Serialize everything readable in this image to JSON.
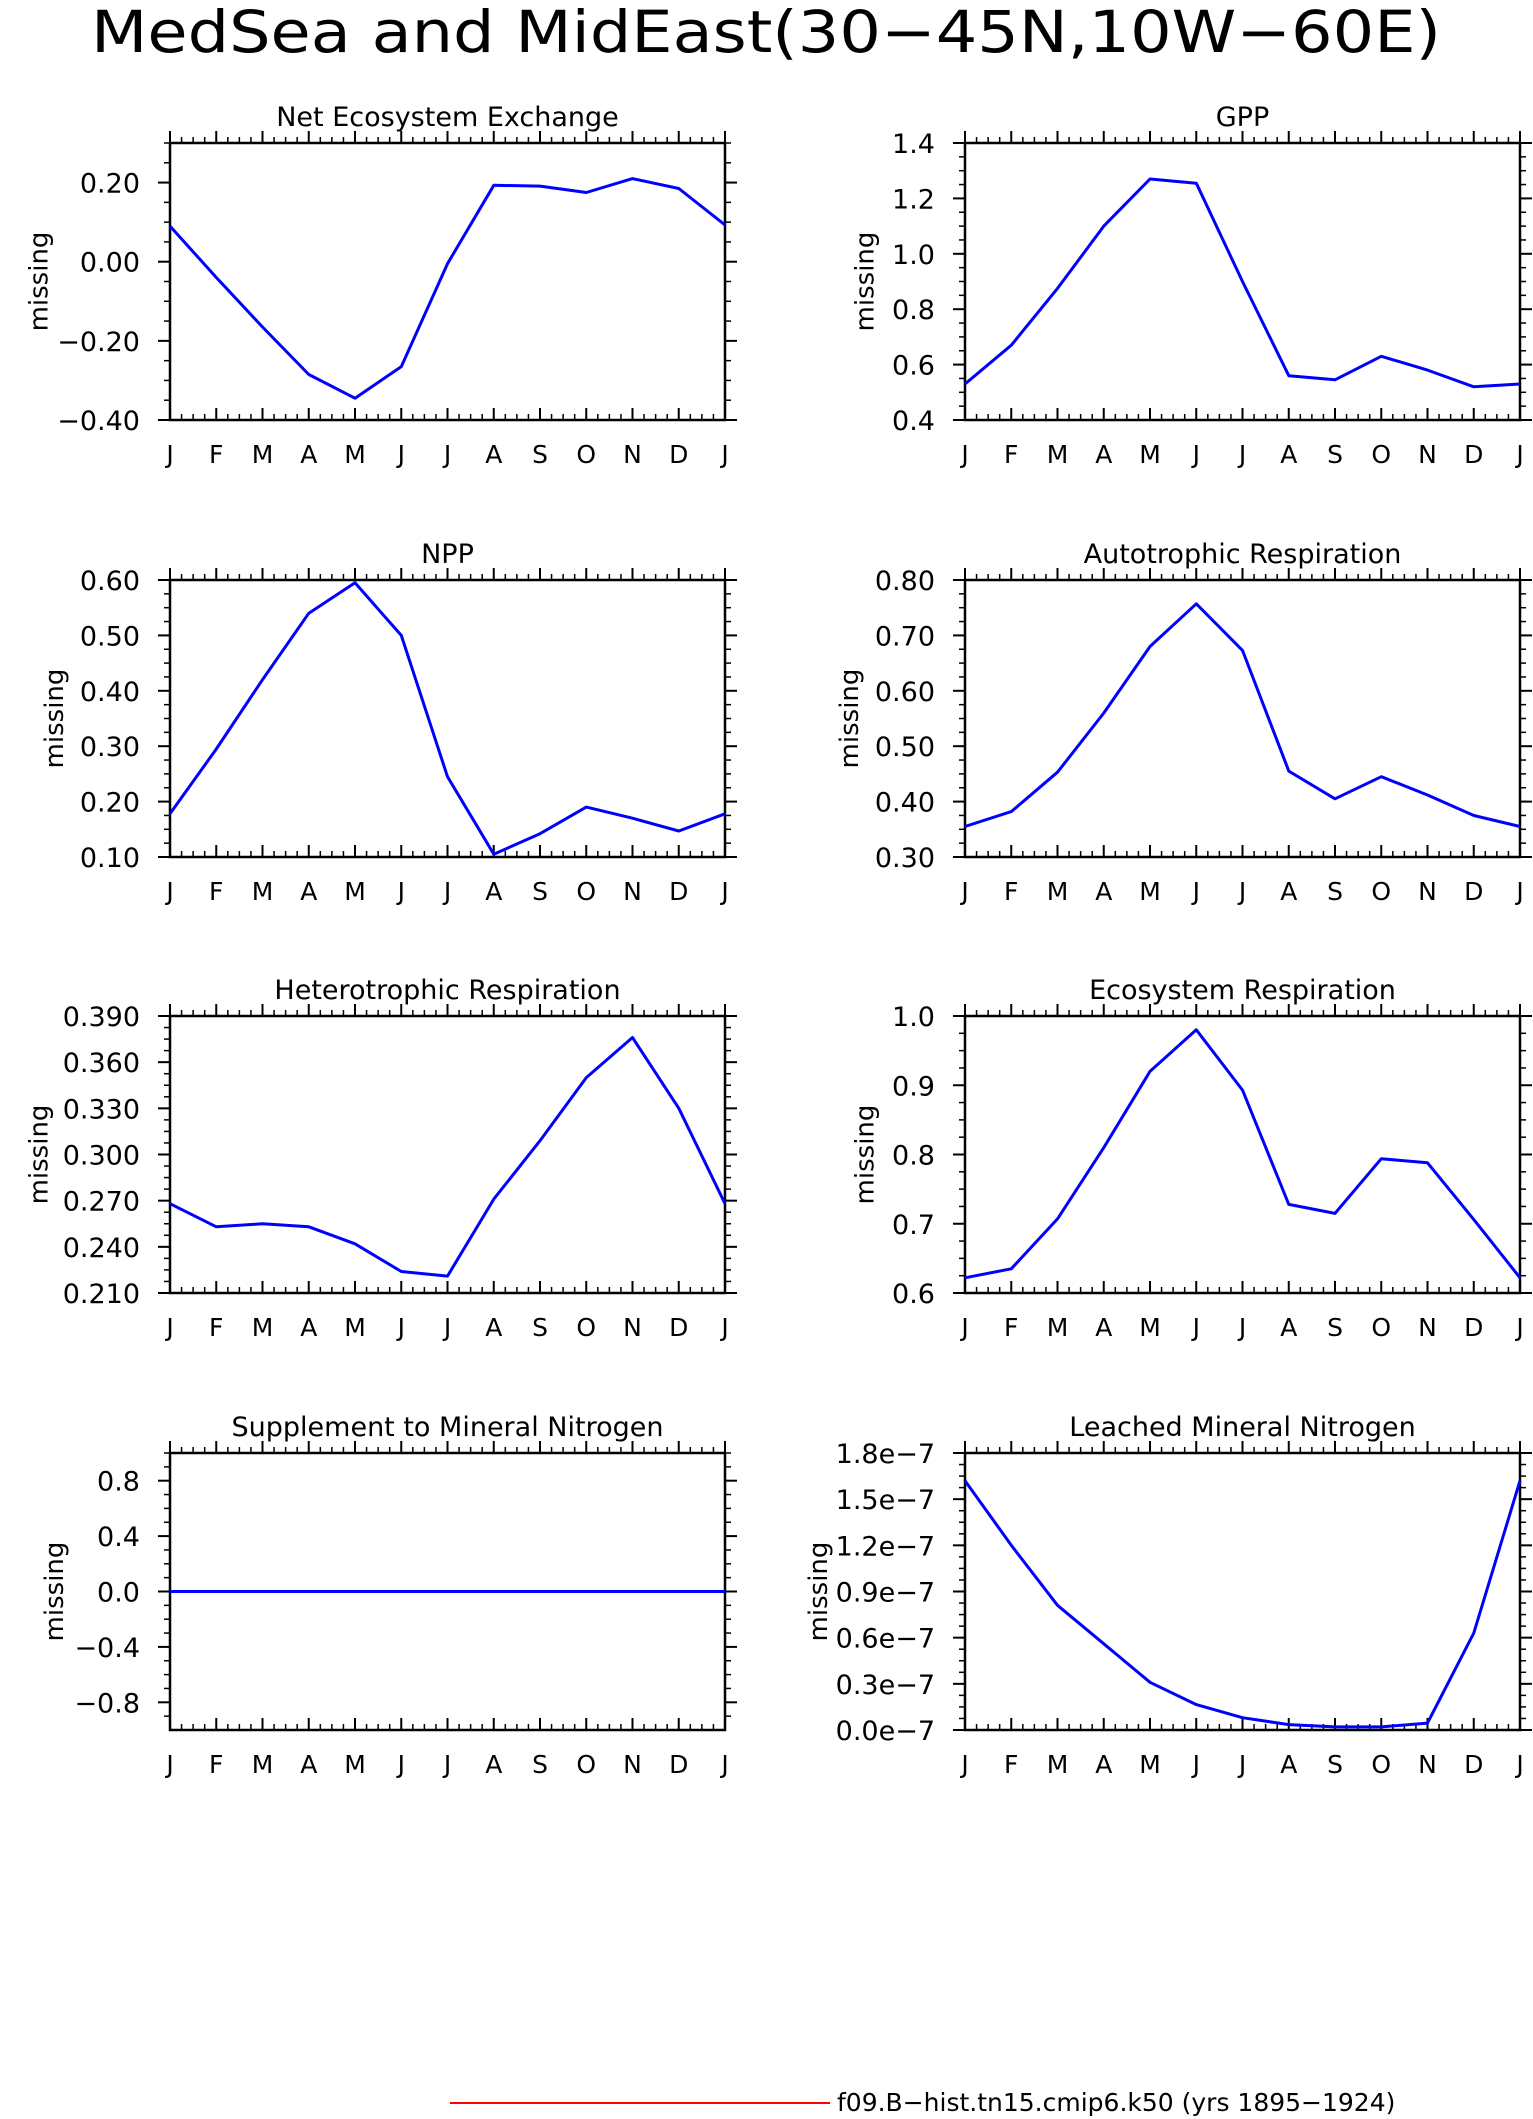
{
  "figure": {
    "title": "MedSea and MidEast(30−45N,10W−60E)",
    "legend_label": "f09.B−hist.tn15.cmip6.k50 (yrs 1895−1924)",
    "legend_color": "#ff0000",
    "line_color": "#0000ff"
  },
  "chart_data": [
    {
      "type": "line",
      "title": "Net Ecosystem Exchange",
      "ylabel": "missing",
      "categories": [
        "J",
        "F",
        "M",
        "A",
        "M",
        "J",
        "J",
        "A",
        "S",
        "O",
        "N",
        "D",
        "J"
      ],
      "ylim": [
        -0.4,
        0.3
      ],
      "yticks": [
        -0.4,
        -0.2,
        0.0,
        0.2
      ],
      "ytick_labels": [
        "−0.40",
        "−0.20",
        "0.00",
        "0.20"
      ],
      "values": [
        0.09,
        -0.04,
        -0.165,
        -0.285,
        -0.345,
        -0.265,
        -0.005,
        0.193,
        0.191,
        0.175,
        0.21,
        0.185,
        0.093
      ]
    },
    {
      "type": "line",
      "title": "GPP",
      "ylabel": "missing",
      "categories": [
        "J",
        "F",
        "M",
        "A",
        "M",
        "J",
        "J",
        "A",
        "S",
        "O",
        "N",
        "D",
        "J"
      ],
      "ylim": [
        0.4,
        1.4
      ],
      "yticks": [
        0.4,
        0.6,
        0.8,
        1.0,
        1.2,
        1.4
      ],
      "ytick_labels": [
        "0.4",
        "0.6",
        "0.8",
        "1.0",
        "1.2",
        "1.4"
      ],
      "values": [
        0.53,
        0.67,
        0.875,
        1.1,
        1.27,
        1.255,
        0.9,
        0.56,
        0.545,
        0.63,
        0.58,
        0.52,
        0.53
      ]
    },
    {
      "type": "line",
      "title": "NPP",
      "ylabel": "missing",
      "categories": [
        "J",
        "F",
        "M",
        "A",
        "M",
        "J",
        "J",
        "A",
        "S",
        "O",
        "N",
        "D",
        "J"
      ],
      "ylim": [
        0.1,
        0.6
      ],
      "yticks": [
        0.1,
        0.2,
        0.3,
        0.4,
        0.5,
        0.6
      ],
      "ytick_labels": [
        "0.10",
        "0.20",
        "0.30",
        "0.40",
        "0.50",
        "0.60"
      ],
      "values": [
        0.178,
        0.295,
        0.42,
        0.54,
        0.595,
        0.5,
        0.245,
        0.105,
        0.142,
        0.19,
        0.17,
        0.147,
        0.178
      ]
    },
    {
      "type": "line",
      "title": "Autotrophic Respiration",
      "ylabel": "missing",
      "categories": [
        "J",
        "F",
        "M",
        "A",
        "M",
        "J",
        "J",
        "A",
        "S",
        "O",
        "N",
        "D",
        "J"
      ],
      "ylim": [
        0.3,
        0.8
      ],
      "yticks": [
        0.3,
        0.4,
        0.5,
        0.6,
        0.7,
        0.8
      ],
      "ytick_labels": [
        "0.30",
        "0.40",
        "0.50",
        "0.60",
        "0.70",
        "0.80"
      ],
      "values": [
        0.355,
        0.382,
        0.453,
        0.56,
        0.68,
        0.757,
        0.673,
        0.455,
        0.405,
        0.445,
        0.412,
        0.375,
        0.355
      ]
    },
    {
      "type": "line",
      "title": "Heterotrophic Respiration",
      "ylabel": "missing",
      "categories": [
        "J",
        "F",
        "M",
        "A",
        "M",
        "J",
        "J",
        "A",
        "S",
        "O",
        "N",
        "D",
        "J"
      ],
      "ylim": [
        0.21,
        0.39
      ],
      "yticks": [
        0.21,
        0.24,
        0.27,
        0.3,
        0.33,
        0.36,
        0.39
      ],
      "ytick_labels": [
        "0.210",
        "0.240",
        "0.270",
        "0.300",
        "0.330",
        "0.360",
        "0.390"
      ],
      "values": [
        0.268,
        0.253,
        0.255,
        0.253,
        0.242,
        0.224,
        0.221,
        0.271,
        0.309,
        0.35,
        0.376,
        0.33,
        0.268
      ]
    },
    {
      "type": "line",
      "title": "Ecosystem Respiration",
      "ylabel": "missing",
      "categories": [
        "J",
        "F",
        "M",
        "A",
        "M",
        "J",
        "J",
        "A",
        "S",
        "O",
        "N",
        "D",
        "J"
      ],
      "ylim": [
        0.6,
        1.0
      ],
      "yticks": [
        0.6,
        0.7,
        0.8,
        0.9,
        1.0
      ],
      "ytick_labels": [
        "0.6",
        "0.7",
        "0.8",
        "0.9",
        "1.0"
      ],
      "values": [
        0.622,
        0.635,
        0.707,
        0.81,
        0.92,
        0.98,
        0.893,
        0.728,
        0.715,
        0.794,
        0.788,
        0.706,
        0.622
      ]
    },
    {
      "type": "line",
      "title": "Supplement to Mineral Nitrogen",
      "ylabel": "missing",
      "categories": [
        "J",
        "F",
        "M",
        "A",
        "M",
        "J",
        "J",
        "A",
        "S",
        "O",
        "N",
        "D",
        "J"
      ],
      "ylim": [
        -1.0,
        1.0
      ],
      "yticks": [
        -0.8,
        -0.4,
        0.0,
        0.4,
        0.8
      ],
      "ytick_labels": [
        "−0.8",
        "−0.4",
        "0.0",
        "0.4",
        "0.8"
      ],
      "values": [
        0,
        0,
        0,
        0,
        0,
        0,
        0,
        0,
        0,
        0,
        0,
        0,
        0
      ]
    },
    {
      "type": "line",
      "title": "Leached Mineral Nitrogen",
      "ylabel": "missing",
      "categories": [
        "J",
        "F",
        "M",
        "A",
        "M",
        "J",
        "J",
        "A",
        "S",
        "O",
        "N",
        "D",
        "J"
      ],
      "ylim": [
        0.0,
        1.8e-07
      ],
      "yticks": [
        0.0,
        3e-08,
        6e-08,
        9e-08,
        1.2e-07,
        1.5e-07,
        1.8e-07
      ],
      "ytick_labels": [
        "0.0e−7",
        "0.3e−7",
        "0.6e−7",
        "0.9e−7",
        "1.2e−7",
        "1.5e−7",
        "1.8e−7"
      ],
      "values": [
        1.62e-07,
        1.2e-07,
        8.1e-08,
        5.6e-08,
        3.1e-08,
        1.65e-08,
        8e-09,
        3.5e-09,
        2e-09,
        2e-09,
        4.5e-09,
        6.3e-08,
        1.62e-07
      ]
    }
  ]
}
